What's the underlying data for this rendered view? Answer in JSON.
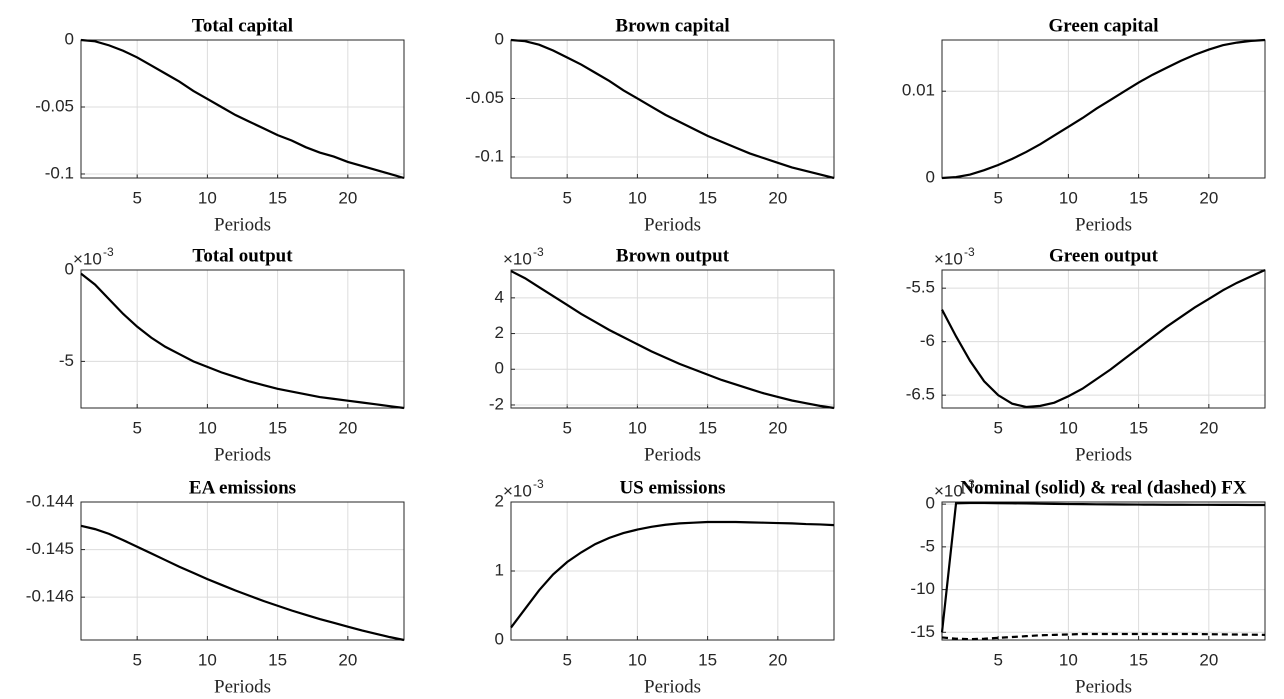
{
  "chart_data": [
    {
      "type": "line",
      "title": "Total capital",
      "xlabel": "Periods",
      "x": [
        1,
        2,
        3,
        4,
        5,
        6,
        7,
        8,
        9,
        10,
        11,
        12,
        13,
        14,
        15,
        16,
        17,
        18,
        19,
        20,
        21,
        22,
        23,
        24
      ],
      "series": [
        {
          "color": "#000000",
          "linestyle": "solid",
          "values": [
            0,
            -0.001,
            -0.004,
            -0.008,
            -0.013,
            -0.019,
            -0.025,
            -0.031,
            -0.038,
            -0.044,
            -0.05,
            -0.056,
            -0.061,
            -0.066,
            -0.071,
            -0.075,
            -0.08,
            -0.084,
            -0.087,
            -0.091,
            -0.094,
            -0.097,
            -0.1,
            -0.103
          ]
        }
      ],
      "xlim": [
        1,
        24
      ],
      "xticks": [
        5,
        10,
        15,
        20
      ],
      "ylim": [
        -0.103,
        0
      ],
      "yticks": [
        -0.1,
        -0.05,
        0
      ],
      "grid": true
    },
    {
      "type": "line",
      "title": "Brown capital",
      "xlabel": "Periods",
      "x": [
        1,
        2,
        3,
        4,
        5,
        6,
        7,
        8,
        9,
        10,
        11,
        12,
        13,
        14,
        15,
        16,
        17,
        18,
        19,
        20,
        21,
        22,
        23,
        24
      ],
      "series": [
        {
          "color": "#000000",
          "linestyle": "solid",
          "values": [
            0,
            -0.001,
            -0.004,
            -0.009,
            -0.015,
            -0.021,
            -0.028,
            -0.035,
            -0.043,
            -0.05,
            -0.057,
            -0.064,
            -0.07,
            -0.076,
            -0.082,
            -0.087,
            -0.092,
            -0.097,
            -0.101,
            -0.105,
            -0.109,
            -0.112,
            -0.115,
            -0.118
          ]
        }
      ],
      "xlim": [
        1,
        24
      ],
      "xticks": [
        5,
        10,
        15,
        20
      ],
      "ylim": [
        -0.118,
        0
      ],
      "yticks": [
        -0.1,
        -0.05,
        0
      ],
      "grid": true
    },
    {
      "type": "line",
      "title": "Green capital",
      "xlabel": "Periods",
      "x": [
        1,
        2,
        3,
        4,
        5,
        6,
        7,
        8,
        9,
        10,
        11,
        12,
        13,
        14,
        15,
        16,
        17,
        18,
        19,
        20,
        21,
        22,
        23,
        24
      ],
      "series": [
        {
          "color": "#000000",
          "linestyle": "solid",
          "values": [
            0,
            0.0001,
            0.0004,
            0.0009,
            0.0015,
            0.0022,
            0.003,
            0.0039,
            0.0049,
            0.0059,
            0.0069,
            0.008,
            0.009,
            0.01,
            0.011,
            0.0119,
            0.0127,
            0.0135,
            0.0142,
            0.0148,
            0.0153,
            0.0156,
            0.0158,
            0.0159
          ]
        }
      ],
      "xlim": [
        1,
        24
      ],
      "xticks": [
        5,
        10,
        15,
        20
      ],
      "ylim": [
        0,
        0.0159
      ],
      "yticks": [
        0,
        0.01
      ],
      "grid": true
    },
    {
      "type": "line",
      "title": "Total output",
      "xlabel": "Periods",
      "y_multiplier": {
        "base": "×10",
        "exponent": "-3"
      },
      "x": [
        1,
        2,
        3,
        4,
        5,
        6,
        7,
        8,
        9,
        10,
        11,
        12,
        13,
        14,
        15,
        16,
        17,
        18,
        19,
        20,
        21,
        22,
        23,
        24
      ],
      "series": [
        {
          "color": "#000000",
          "linestyle": "solid",
          "values": [
            -0.2,
            -0.8,
            -1.6,
            -2.4,
            -3.1,
            -3.7,
            -4.2,
            -4.6,
            -5,
            -5.3,
            -5.6,
            -5.85,
            -6.1,
            -6.3,
            -6.5,
            -6.65,
            -6.8,
            -6.95,
            -7.05,
            -7.15,
            -7.25,
            -7.35,
            -7.45,
            -7.55
          ]
        }
      ],
      "xlim": [
        1,
        24
      ],
      "xticks": [
        5,
        10,
        15,
        20
      ],
      "ylim": [
        -7.55,
        0
      ],
      "yticks": [
        -5,
        0
      ],
      "grid": true
    },
    {
      "type": "line",
      "title": "Brown output",
      "xlabel": "Periods",
      "y_multiplier": {
        "base": "×10",
        "exponent": "-3"
      },
      "x": [
        1,
        2,
        3,
        4,
        5,
        6,
        7,
        8,
        9,
        10,
        11,
        12,
        13,
        14,
        15,
        16,
        17,
        18,
        19,
        20,
        21,
        22,
        23,
        24
      ],
      "series": [
        {
          "color": "#000000",
          "linestyle": "solid",
          "values": [
            5.5,
            5.1,
            4.6,
            4.1,
            3.6,
            3.1,
            2.65,
            2.2,
            1.8,
            1.4,
            1,
            0.65,
            0.3,
            0,
            -0.3,
            -0.6,
            -0.85,
            -1.1,
            -1.35,
            -1.55,
            -1.75,
            -1.9,
            -2.05,
            -2.17
          ]
        }
      ],
      "xlim": [
        1,
        24
      ],
      "xticks": [
        5,
        10,
        15,
        20
      ],
      "ylim": [
        -2.17,
        5.56
      ],
      "yticks": [
        -2,
        0,
        2,
        4
      ],
      "grid": true
    },
    {
      "type": "line",
      "title": "Green output",
      "xlabel": "Periods",
      "y_multiplier": {
        "base": "×10",
        "exponent": "-3"
      },
      "x": [
        1,
        2,
        3,
        4,
        5,
        6,
        7,
        8,
        9,
        10,
        11,
        12,
        13,
        14,
        15,
        16,
        17,
        18,
        19,
        20,
        21,
        22,
        23,
        24
      ],
      "series": [
        {
          "color": "#000000",
          "linestyle": "solid",
          "values": [
            -5.7,
            -5.95,
            -6.18,
            -6.37,
            -6.5,
            -6.58,
            -6.61,
            -6.6,
            -6.57,
            -6.51,
            -6.44,
            -6.35,
            -6.26,
            -6.16,
            -6.06,
            -5.96,
            -5.86,
            -5.77,
            -5.68,
            -5.6,
            -5.52,
            -5.45,
            -5.39,
            -5.33
          ]
        }
      ],
      "xlim": [
        1,
        24
      ],
      "xticks": [
        5,
        10,
        15,
        20
      ],
      "ylim": [
        -6.62,
        -5.33
      ],
      "yticks": [
        -6.5,
        -6,
        -5.5
      ],
      "grid": true
    },
    {
      "type": "line",
      "title": "EA emissions",
      "xlabel": "Periods",
      "x": [
        1,
        2,
        3,
        4,
        5,
        6,
        7,
        8,
        9,
        10,
        11,
        12,
        13,
        14,
        15,
        16,
        17,
        18,
        19,
        20,
        21,
        22,
        23,
        24
      ],
      "series": [
        {
          "color": "#000000",
          "linestyle": "solid",
          "values": [
            -0.1445,
            -0.14457,
            -0.14467,
            -0.1448,
            -0.14494,
            -0.14508,
            -0.14522,
            -0.14536,
            -0.14549,
            -0.14562,
            -0.14574,
            -0.14586,
            -0.14597,
            -0.14608,
            -0.14618,
            -0.14628,
            -0.14637,
            -0.14646,
            -0.14654,
            -0.14662,
            -0.1467,
            -0.14677,
            -0.14684,
            -0.1469
          ]
        }
      ],
      "xlim": [
        1,
        24
      ],
      "xticks": [
        5,
        10,
        15,
        20
      ],
      "ylim": [
        -0.1469,
        -0.144
      ],
      "yticks": [
        -0.146,
        -0.145,
        -0.144
      ],
      "grid": true
    },
    {
      "type": "line",
      "title": "US emissions",
      "xlabel": "Periods",
      "y_multiplier": {
        "base": "×10",
        "exponent": "-3"
      },
      "x": [
        1,
        2,
        3,
        4,
        5,
        6,
        7,
        8,
        9,
        10,
        11,
        12,
        13,
        14,
        15,
        16,
        17,
        18,
        19,
        20,
        21,
        22,
        23,
        24
      ],
      "series": [
        {
          "color": "#000000",
          "linestyle": "solid",
          "values": [
            0.18,
            0.45,
            0.72,
            0.95,
            1.13,
            1.27,
            1.39,
            1.48,
            1.55,
            1.6,
            1.64,
            1.67,
            1.69,
            1.7,
            1.71,
            1.71,
            1.71,
            1.705,
            1.7,
            1.695,
            1.69,
            1.68,
            1.675,
            1.665
          ]
        }
      ],
      "xlim": [
        1,
        24
      ],
      "xticks": [
        5,
        10,
        15,
        20
      ],
      "ylim": [
        0,
        2
      ],
      "yticks": [
        0,
        1,
        2
      ],
      "grid": true
    },
    {
      "type": "line",
      "title": "Nominal (solid) & real (dashed) FX",
      "xlabel": "Periods",
      "y_multiplier": {
        "base": "×10",
        "exponent": "-3"
      },
      "x": [
        1,
        2,
        3,
        4,
        5,
        6,
        7,
        8,
        9,
        10,
        11,
        12,
        13,
        14,
        15,
        16,
        17,
        18,
        19,
        20,
        21,
        22,
        23,
        24
      ],
      "series": [
        {
          "color": "#000000",
          "linestyle": "solid",
          "values": [
            -15,
            0.1,
            0.15,
            0.15,
            0.12,
            0.1,
            0.08,
            0.05,
            0.03,
            0.01,
            0,
            -0.02,
            -0.03,
            -0.04,
            -0.05,
            -0.06,
            -0.07,
            -0.07,
            -0.08,
            -0.08,
            -0.09,
            -0.09,
            -0.1,
            -0.1
          ]
        },
        {
          "color": "#000000",
          "linestyle": "dashed",
          "values": [
            -15.6,
            -15.75,
            -15.8,
            -15.75,
            -15.65,
            -15.55,
            -15.45,
            -15.35,
            -15.3,
            -15.25,
            -15.2,
            -15.2,
            -15.2,
            -15.2,
            -15.2,
            -15.2,
            -15.2,
            -15.2,
            -15.2,
            -15.22,
            -15.24,
            -15.26,
            -15.28,
            -15.3
          ]
        }
      ],
      "xlim": [
        1,
        24
      ],
      "xticks": [
        5,
        10,
        15,
        20
      ],
      "ylim": [
        -15.9,
        0.25
      ],
      "yticks": [
        -15,
        -10,
        -5,
        0
      ],
      "grid": true
    }
  ]
}
